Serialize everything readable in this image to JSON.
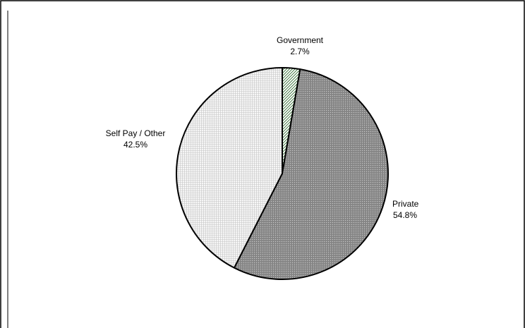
{
  "chart_data": {
    "type": "pie",
    "title": "",
    "slices": [
      {
        "label": "Government",
        "value": 2.7,
        "value_label": "2.7%",
        "pattern": "diagonal-hatch",
        "color": "#e6f2dc"
      },
      {
        "label": "Private",
        "value": 54.8,
        "value_label": "54.8%",
        "pattern": "dense-dots",
        "color": "#9a9a9a"
      },
      {
        "label": "Self Pay / Other",
        "value": 42.5,
        "value_label": "42.5%",
        "pattern": "fine-grid",
        "color": "#eeeeee"
      }
    ],
    "start_angle": "12 o'clock",
    "direction": "clockwise",
    "legend": "none",
    "labels": "outside"
  }
}
